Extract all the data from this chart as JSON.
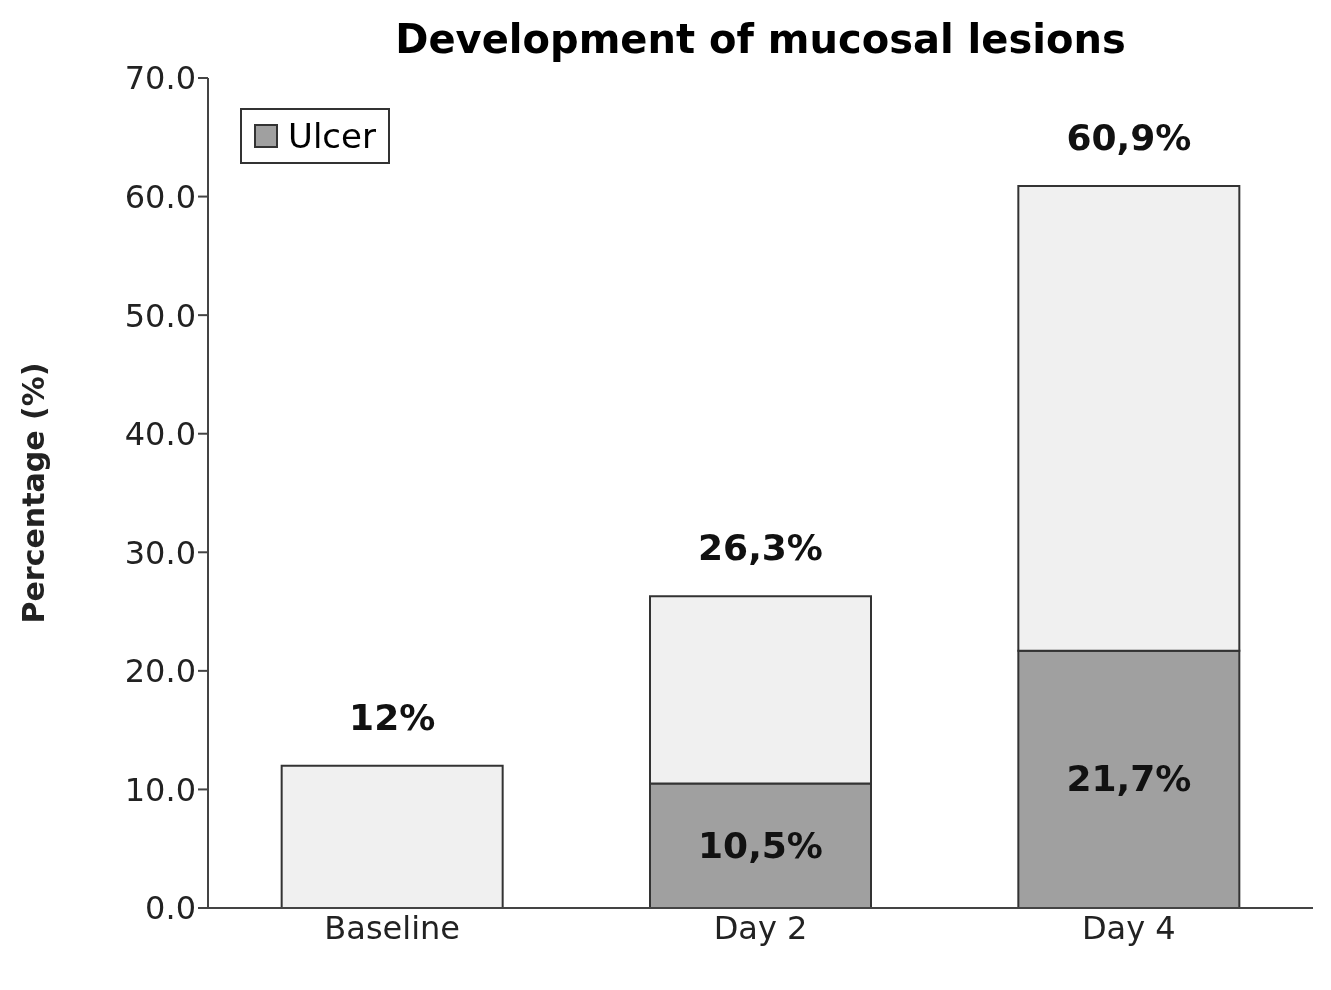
{
  "chart_data": {
    "type": "bar",
    "title": "Development of mucosal lesions",
    "ylabel": "Percentage (%)",
    "categories": [
      "Baseline",
      "Day 2",
      "Day 4"
    ],
    "stacked": true,
    "series": [
      {
        "name": "Ulcer",
        "color": "#a0a0a0",
        "values": [
          0,
          10.5,
          21.7
        ],
        "value_labels": [
          null,
          "10,5%",
          "21,7%"
        ]
      },
      {
        "color": "#f0f0f0",
        "values": [
          12,
          15.8,
          39.2
        ]
      }
    ],
    "totals": [
      "12%",
      "26,3%",
      "60,9%"
    ],
    "ylim": [
      0,
      70
    ],
    "yticks": [
      {
        "value": 0,
        "label": "0.0"
      },
      {
        "value": 10,
        "label": "10.0"
      },
      {
        "value": 20,
        "label": "20.0"
      },
      {
        "value": 30,
        "label": "30.0"
      },
      {
        "value": 40,
        "label": "40.0"
      },
      {
        "value": 50,
        "label": "50.0"
      },
      {
        "value": 60,
        "label": "60.0"
      },
      {
        "value": 70,
        "label": "70.0"
      }
    ],
    "legend": "top left",
    "grid": false
  }
}
